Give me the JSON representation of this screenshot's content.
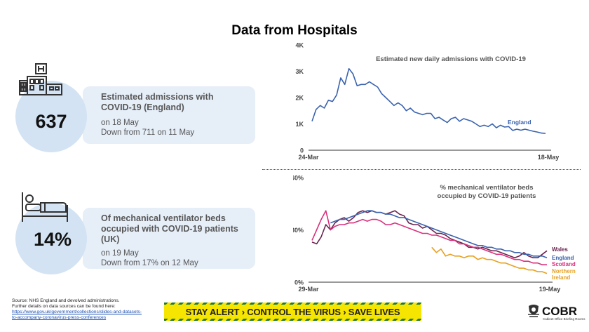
{
  "title": "Data from Hospitals",
  "left_panel": {
    "admissions": {
      "big_number": "637",
      "heading_line1": "Estimated admissions with",
      "heading_line2": "COVID-19 (England)",
      "sub_line1": "on 18 May",
      "sub_line2": "Down from 711 on 11 May"
    },
    "ventilators": {
      "big_number": "14%",
      "heading_line1": "Of mechanical ventilator beds",
      "heading_line2": "occupied with COVID-19 patients",
      "heading_line3": "(UK)",
      "sub_line1": "on 19 May",
      "sub_line2": "Down from 17% on 12 May"
    },
    "icons": [
      "hospital-building-icon",
      "hospital-bed-icon"
    ],
    "circle_color": "#d3e3f3",
    "card_color": "#e6eef8"
  },
  "chart_data": [
    {
      "type": "line",
      "title": "Estimated new daily admissions with COVID-19",
      "xlabel": "",
      "ylabel": "",
      "x_tick_labels": [
        "24-Mar",
        "18-May"
      ],
      "y_tick_labels": [
        "0",
        "1K",
        "2K",
        "3K",
        "4K"
      ],
      "y_ticks": [
        0,
        1000,
        2000,
        3000,
        4000
      ],
      "ylim": [
        0,
        4000
      ],
      "grid": false,
      "series": [
        {
          "name": "England",
          "color": "#3a63ad",
          "values": [
            1100,
            1550,
            1700,
            1600,
            1900,
            1850,
            2100,
            2750,
            2500,
            3100,
            2900,
            2450,
            2500,
            2500,
            2600,
            2500,
            2400,
            2150,
            2000,
            1850,
            1700,
            1800,
            1700,
            1500,
            1600,
            1450,
            1400,
            1350,
            1400,
            1400,
            1200,
            1250,
            1150,
            1050,
            1200,
            1250,
            1100,
            1200,
            1150,
            1100,
            1000,
            900,
            950,
            900,
            1000,
            850,
            950,
            880,
            900,
            750,
            800,
            760,
            800,
            760,
            720,
            690,
            650,
            637
          ]
        }
      ]
    },
    {
      "type": "line",
      "title": "% mechanical ventilator beds occupied by COVID-19 patients",
      "xlabel": "",
      "ylabel": "",
      "x_tick_labels": [
        "29-Mar",
        "19-May"
      ],
      "y_tick_labels": [
        "0%",
        "30%",
        "60%"
      ],
      "y_ticks": [
        0,
        30,
        60
      ],
      "ylim": [
        0,
        60
      ],
      "grid": false,
      "series": [
        {
          "name": "Wales",
          "color": "#6b2450",
          "values": [
            23,
            22,
            26,
            33,
            30,
            34,
            36,
            37,
            35,
            37,
            40,
            41,
            40,
            41,
            40,
            40,
            39,
            40,
            41,
            39,
            38,
            34,
            33,
            33,
            31,
            32,
            30,
            28,
            28,
            27,
            25,
            24,
            23,
            22,
            20,
            20,
            19,
            20,
            19,
            18,
            18,
            17,
            16,
            15,
            14,
            15,
            17,
            15,
            14,
            14,
            16,
            18
          ]
        },
        {
          "name": "England",
          "color": "#3a63ad",
          "values": [
            null,
            null,
            null,
            null,
            34,
            35,
            36,
            36,
            37,
            38,
            39,
            40,
            41,
            41,
            40,
            40,
            39,
            39,
            38,
            37,
            37,
            36,
            35,
            34,
            33,
            32,
            31,
            30,
            29,
            28,
            27,
            26,
            25,
            24,
            23,
            22,
            21,
            21,
            20,
            20,
            19,
            19,
            18,
            18,
            17,
            17,
            16,
            16,
            15,
            15,
            15,
            14
          ]
        },
        {
          "name": "Scotland",
          "color": "#d8317c",
          "values": [
            24,
            30,
            36,
            41,
            30,
            32,
            33,
            33,
            34,
            34,
            35,
            36,
            35,
            36,
            36,
            35,
            33,
            33,
            34,
            33,
            32,
            31,
            30,
            29,
            28,
            28,
            27,
            27,
            26,
            25,
            24,
            24,
            22,
            22,
            21,
            20,
            20,
            19,
            18,
            17,
            16,
            16,
            15,
            14,
            13,
            13,
            12,
            12,
            11,
            11,
            10,
            10
          ]
        },
        {
          "name": "Northern Ireland",
          "color": "#e8a020",
          "values": [
            null,
            null,
            null,
            null,
            null,
            null,
            null,
            null,
            null,
            null,
            null,
            null,
            null,
            null,
            null,
            null,
            null,
            null,
            null,
            null,
            null,
            null,
            null,
            null,
            null,
            null,
            20,
            17,
            19,
            15,
            16,
            15,
            15,
            14,
            15,
            15,
            13,
            14,
            13,
            13,
            12,
            11,
            11,
            10,
            9,
            8,
            8,
            7,
            7,
            6,
            6,
            5
          ]
        }
      ],
      "legend_labels": [
        "Wales",
        "England",
        "Scotland",
        "Northern",
        "Ireland"
      ]
    }
  ],
  "footer": {
    "source_line1": "Source: NHS England and devolved administrations.",
    "source_line2": "Further details on data sources can be found here:",
    "link_line1": "https://www.gov.uk/government/collections/slides-and-datasets-",
    "link_line2": "to-accompany-coronavirus-press-conferences",
    "banner_text": "STAY ALERT › CONTROL THE VIRUS › SAVE LIVES",
    "banner_color": "#f6e500",
    "cobr_logo_text": "COBR",
    "cobr_sub_text": "Cabinet Office Briefing Rooms"
  }
}
